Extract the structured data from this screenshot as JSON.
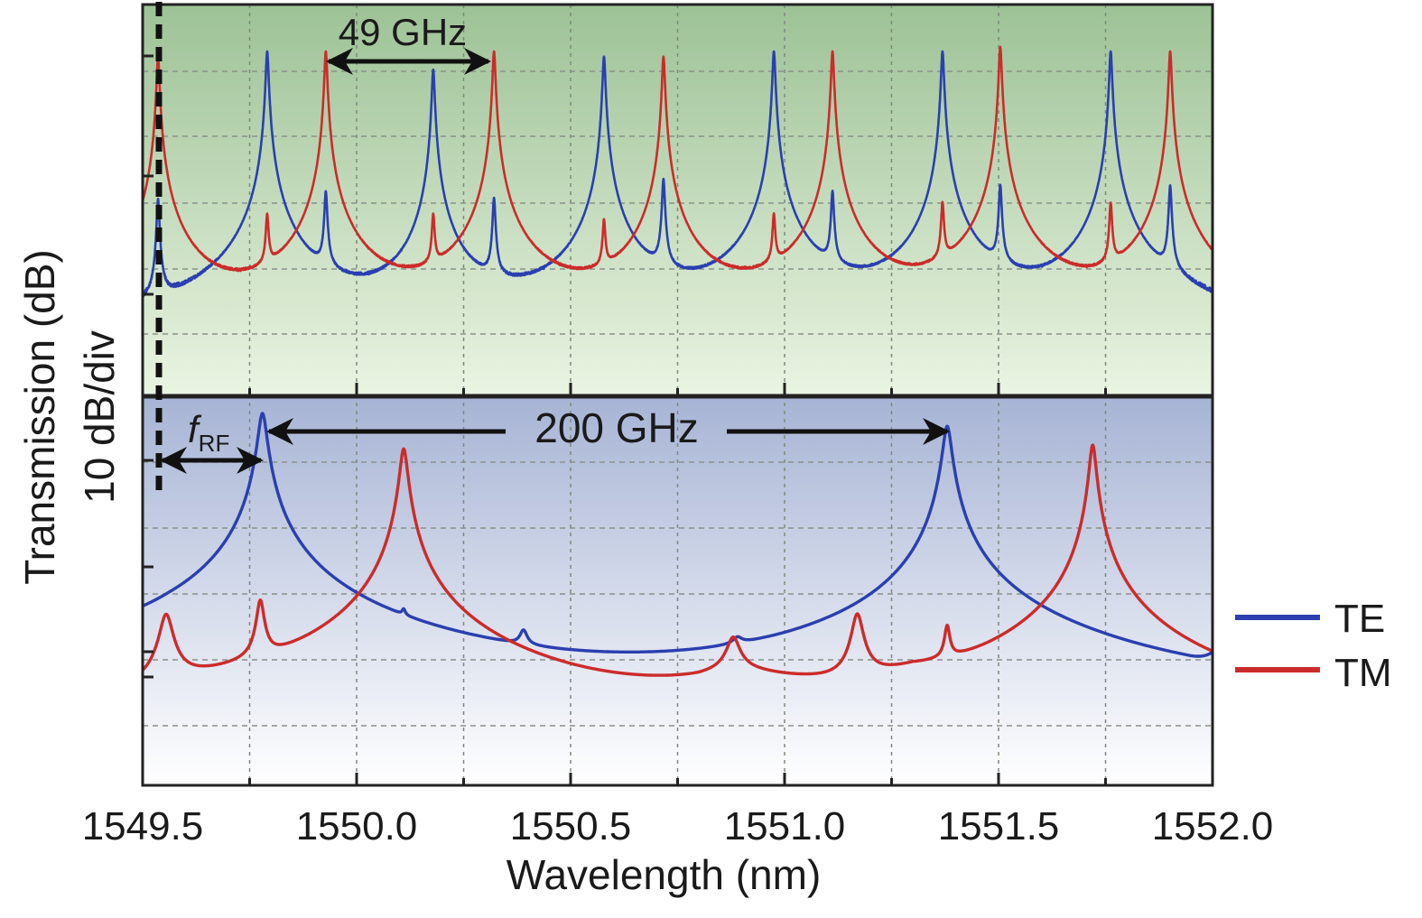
{
  "chart_data": [
    {
      "type": "line",
      "panel": "top",
      "xlim": [
        1549.5,
        1552.0
      ],
      "ylim": [
        -60,
        0
      ],
      "y_unit": "dB",
      "grid": true,
      "annotation": "49 GHz",
      "annotation_arrow_nm": [
        1549.93,
        1550.32
      ],
      "series": [
        {
          "name": "TE",
          "color": "#2b3fb0",
          "baseline_db": -52,
          "noise_db": 2.2,
          "linewidth_nm": 0.0028,
          "peaks": [
            [
              1549.791,
              -7.2
            ],
            [
              1550.179,
              -10
            ],
            [
              1550.578,
              -8
            ],
            [
              1550.975,
              -7.2
            ],
            [
              1551.369,
              -7.2
            ],
            [
              1551.762,
              -7.2
            ],
            [
              1549.928,
              -29
            ],
            [
              1550.321,
              -30
            ],
            [
              1550.717,
              -27
            ],
            [
              1551.112,
              -29
            ],
            [
              1551.504,
              -28
            ],
            [
              1551.901,
              -28
            ],
            [
              1549.536,
              -30
            ]
          ]
        },
        {
          "name": "TM",
          "color": "#cc2b2b",
          "baseline_db": -52,
          "noise_db": 2.2,
          "linewidth_nm": 0.0028,
          "peaks": [
            [
              1549.536,
              -8
            ],
            [
              1549.928,
              -7.2
            ],
            [
              1550.321,
              -7.2
            ],
            [
              1550.717,
              -8
            ],
            [
              1551.112,
              -7.2
            ],
            [
              1551.504,
              -6.5
            ],
            [
              1551.901,
              -7.2
            ],
            [
              1549.791,
              -33
            ],
            [
              1550.179,
              -33
            ],
            [
              1550.578,
              -34
            ],
            [
              1550.975,
              -33
            ],
            [
              1551.369,
              -31
            ],
            [
              1551.762,
              -31
            ]
          ]
        }
      ]
    },
    {
      "type": "line",
      "panel": "bottom",
      "xlim": [
        1549.5,
        1552.0
      ],
      "ylim": [
        -60,
        0
      ],
      "y_unit": "dB",
      "grid": true,
      "annotations": [
        "f",
        "RF",
        "200 GHz"
      ],
      "series": [
        {
          "name": "TE",
          "color": "#2b3fb0",
          "baseline": [
            [
              1549.5,
              -56
            ],
            [
              1549.53,
              -59
            ],
            [
              1549.56,
              -51
            ],
            [
              1549.62,
              -55
            ],
            [
              1549.7,
              -54
            ],
            [
              1549.95,
              -53
            ],
            [
              1550.2,
              -57.5
            ],
            [
              1550.4,
              -59
            ],
            [
              1550.5,
              -75
            ],
            [
              1550.62,
              -62
            ],
            [
              1550.8,
              -59
            ],
            [
              1550.95,
              -56
            ],
            [
              1551.15,
              -57
            ],
            [
              1551.18,
              -61
            ],
            [
              1551.3,
              -58
            ],
            [
              1551.6,
              -57
            ],
            [
              1551.8,
              -60
            ],
            [
              1551.95,
              -56
            ],
            [
              1552.0,
              -45
            ]
          ],
          "peaks": [
            [
              1549.78,
              -2.5,
              0.009
            ],
            [
              1550.11,
              -40,
              0.004
            ],
            [
              1550.39,
              -40,
              0.009
            ],
            [
              1550.89,
              -44,
              0.012
            ],
            [
              1551.38,
              -4.5,
              0.009
            ]
          ]
        },
        {
          "name": "TM",
          "color": "#cc2b2b",
          "baseline": [
            [
              1549.5,
              -52
            ],
            [
              1549.6,
              -50
            ],
            [
              1549.75,
              -51
            ],
            [
              1549.9,
              -52.5
            ],
            [
              1550.08,
              -52.5
            ],
            [
              1550.18,
              -60
            ],
            [
              1550.25,
              -59
            ],
            [
              1550.5,
              -54.5
            ],
            [
              1550.8,
              -47
            ],
            [
              1550.88,
              -44
            ],
            [
              1551.1,
              -49
            ],
            [
              1551.15,
              -50
            ],
            [
              1551.3,
              -47
            ],
            [
              1551.48,
              -51
            ],
            [
              1551.6,
              -50
            ],
            [
              1551.76,
              -56
            ],
            [
              1551.79,
              -62
            ],
            [
              1551.9,
              -59
            ],
            [
              1552.0,
              -57
            ]
          ],
          "peaks": [
            [
              1549.555,
              -34,
              0.014
            ],
            [
              1549.775,
              -32,
              0.008
            ],
            [
              1550.11,
              -8,
              0.008
            ],
            [
              1550.88,
              -39,
              0.015
            ],
            [
              1551.17,
              -34,
              0.012
            ],
            [
              1551.38,
              -37,
              0.006
            ],
            [
              1551.72,
              -7.4,
              0.007
            ]
          ]
        }
      ]
    }
  ],
  "axes": {
    "xlabel": "Wavelength (nm)",
    "ylabel": "Transmission (dB)",
    "yscale_label": "10 dB/div",
    "xticks": [
      "1549.5",
      "1550.0",
      "1550.5",
      "1551.0",
      "1551.5",
      "1552.0"
    ],
    "xtick_values": [
      1549.5,
      1550.0,
      1550.5,
      1551.0,
      1551.5,
      1552.0
    ]
  },
  "legend": {
    "placement": "right",
    "items": [
      {
        "label": "TE",
        "color": "#2b3fb0"
      },
      {
        "label": "TM",
        "color": "#cc2b2b"
      }
    ]
  },
  "annotations": {
    "top_spacing": "49 GHz",
    "f_main": "f",
    "f_sub": "RF",
    "bottom_spacing": "200 GHz"
  }
}
